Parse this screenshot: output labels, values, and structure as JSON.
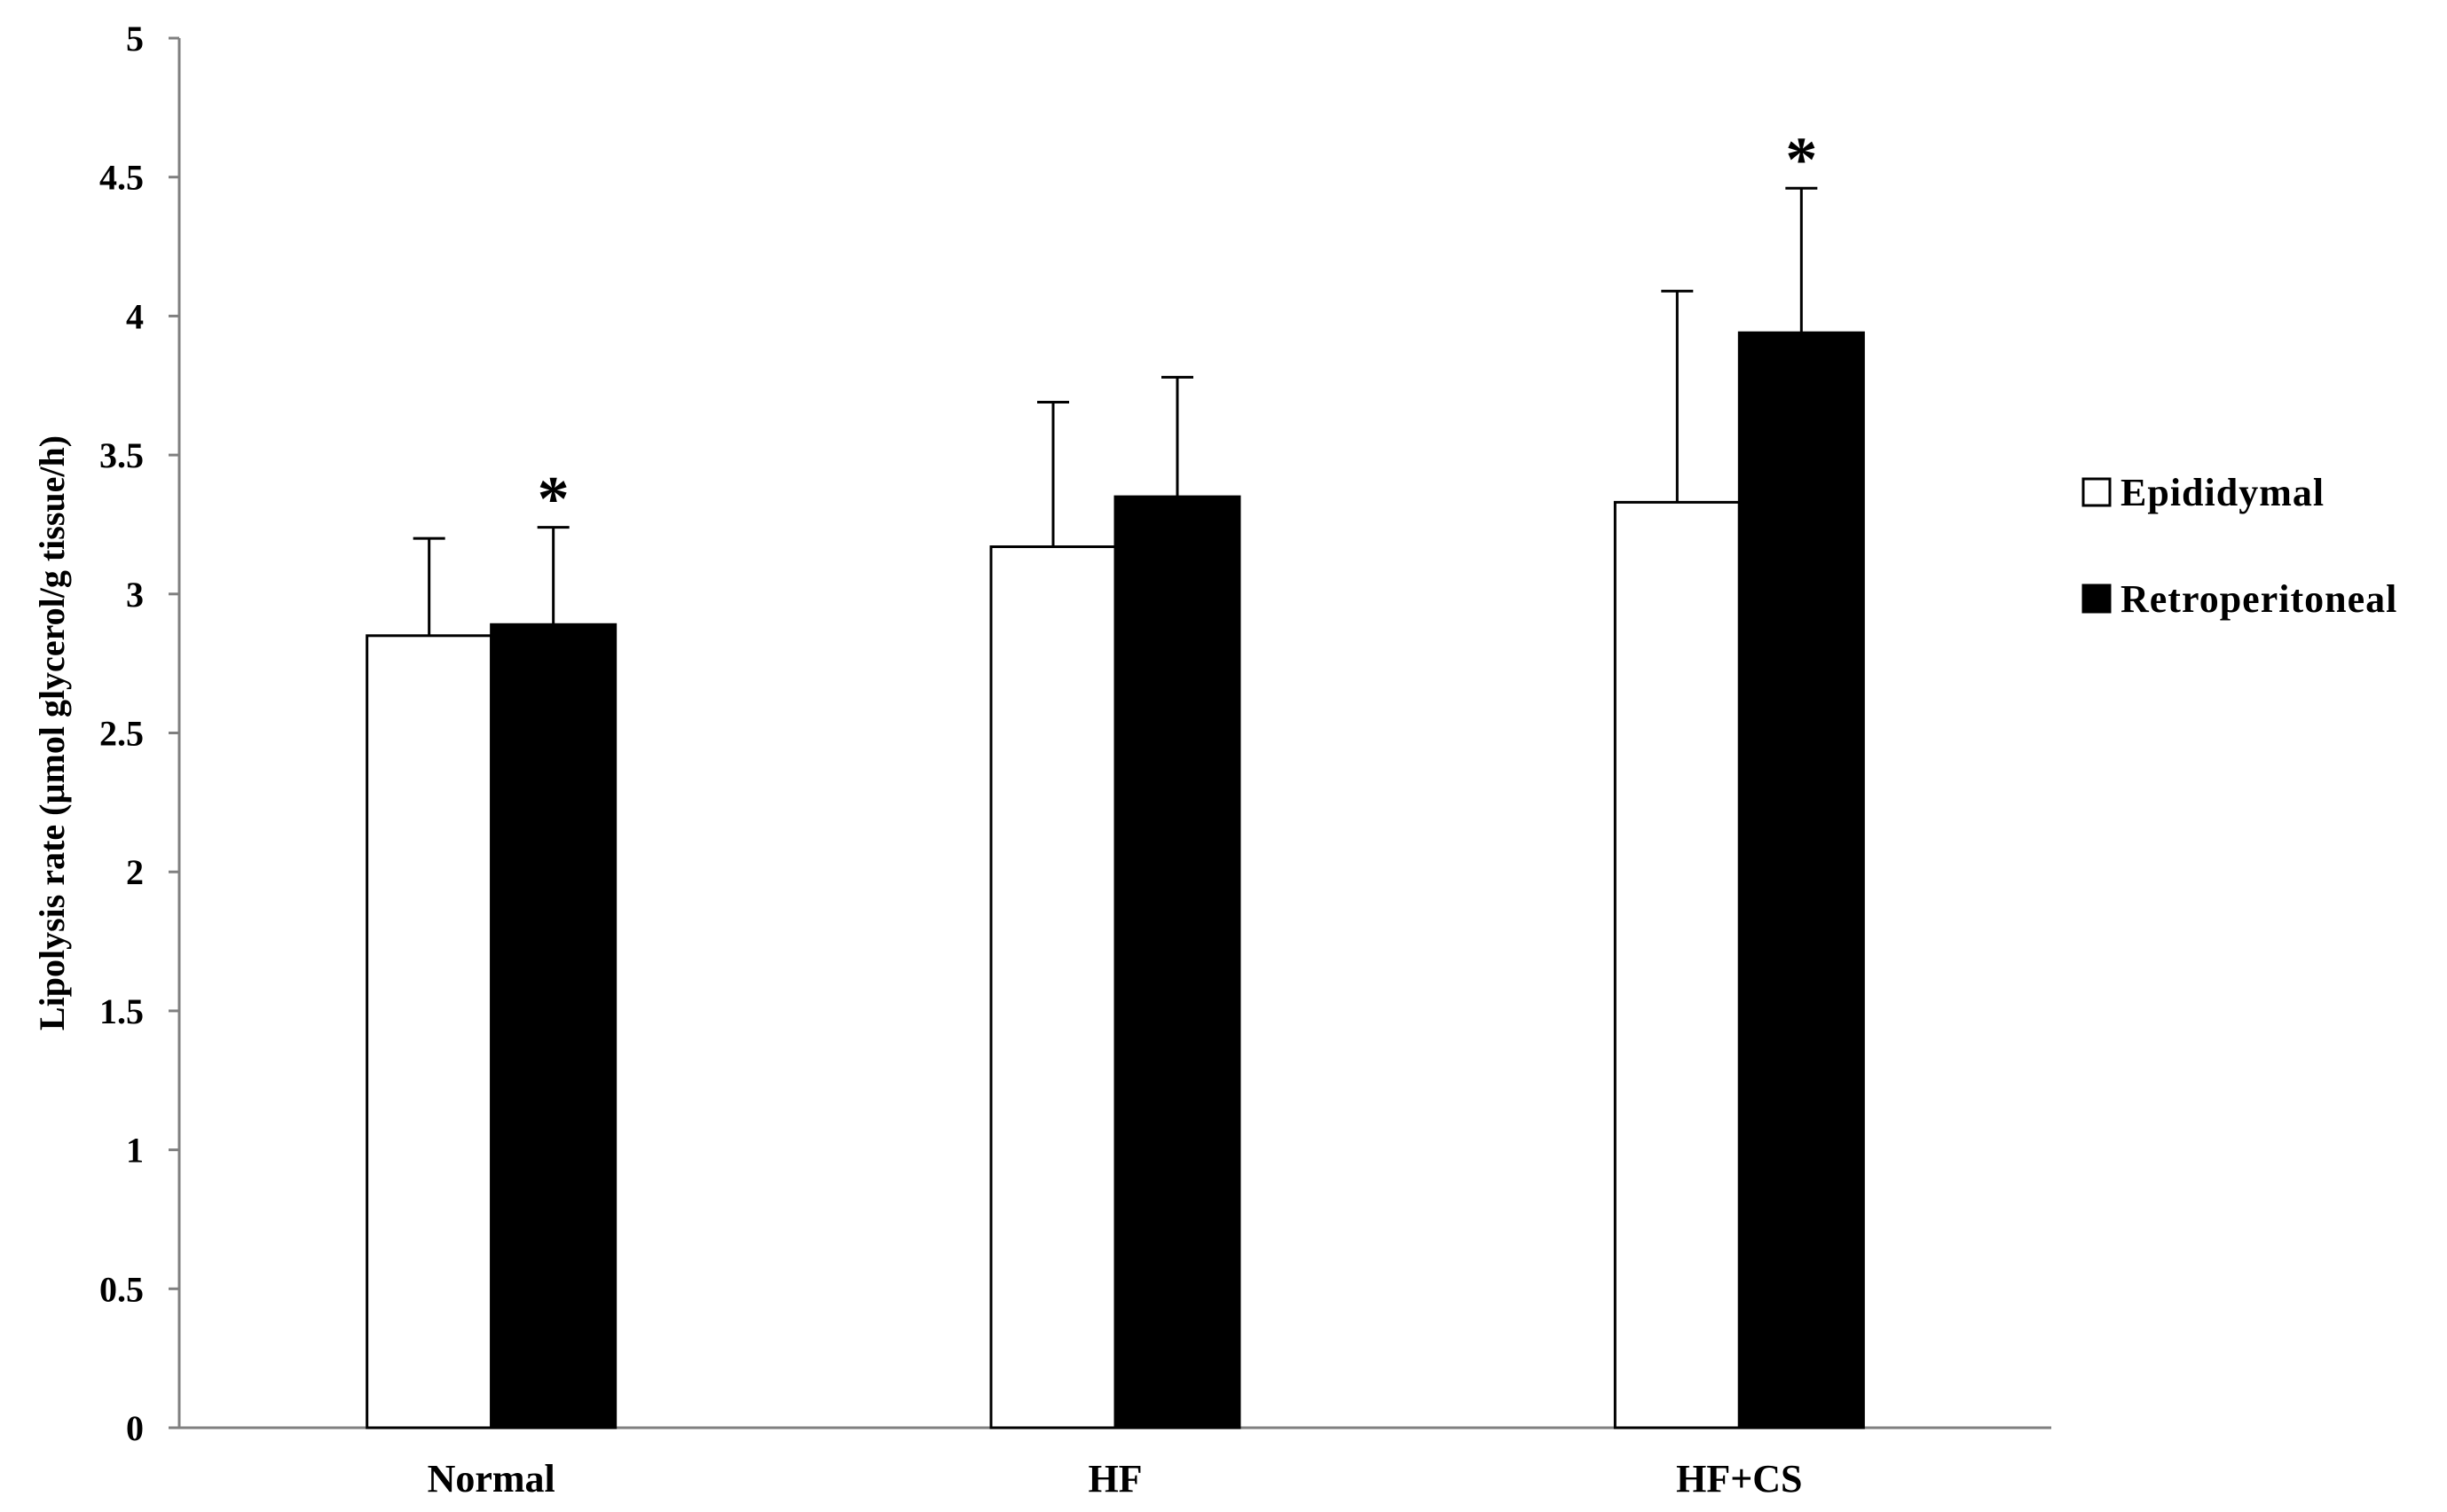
{
  "chart_data": {
    "type": "bar",
    "title": "",
    "xlabel": "",
    "ylabel": "Lipolysis rate (µmol glycerol/g tissue/h)",
    "ylim": [
      0,
      5
    ],
    "yticks": [
      "0",
      "0.5",
      "1",
      "1.5",
      "2",
      "2.5",
      "3",
      "3.5",
      "4",
      "4.5",
      "5"
    ],
    "categories": [
      "Normal",
      "HF",
      "HF+CS"
    ],
    "series": [
      {
        "name": "Epididymal",
        "fill": "#ffffff",
        "values": [
          2.85,
          3.17,
          3.33
        ],
        "errors": [
          0.35,
          0.52,
          0.76
        ],
        "significance": [
          "",
          "",
          ""
        ]
      },
      {
        "name": "Retroperitoneal",
        "fill": "#000000",
        "values": [
          2.89,
          3.35,
          3.94
        ],
        "errors": [
          0.35,
          0.43,
          0.52
        ],
        "significance": [
          "*",
          "",
          "*"
        ]
      }
    ],
    "grid": false,
    "legend_position": "right"
  }
}
